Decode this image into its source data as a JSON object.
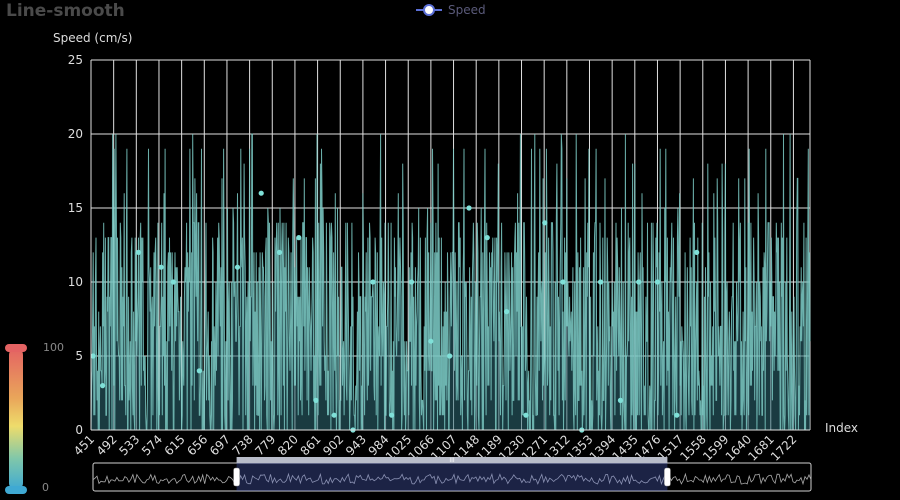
{
  "chart_data": {
    "type": "line",
    "title": "Line-smooth",
    "legend": {
      "entries": [
        "Speed"
      ],
      "placement": "top-center"
    },
    "xlabel": "Index",
    "ylabel": "Speed (cm/s)",
    "ylim": [
      0,
      25
    ],
    "yticks": [
      0,
      5,
      10,
      15,
      20,
      25
    ],
    "xticks": [
      451,
      492,
      533,
      574,
      615,
      656,
      697,
      738,
      779,
      820,
      861,
      902,
      943,
      984,
      1025,
      1066,
      1107,
      1148,
      1189,
      1230,
      1271,
      1312,
      1353,
      1394,
      1435,
      1476,
      1517,
      1558,
      1599,
      1640,
      1681,
      1722
    ],
    "xlim": [
      451,
      1752
    ],
    "grid": true,
    "smooth": true,
    "series": [
      {
        "name": "Speed",
        "color": "#7ccbc6",
        "markers": [
          {
            "x": 455,
            "y": 5
          },
          {
            "x": 472,
            "y": 3
          },
          {
            "x": 537,
            "y": 12
          },
          {
            "x": 578,
            "y": 11
          },
          {
            "x": 600,
            "y": 10
          },
          {
            "x": 647,
            "y": 4
          },
          {
            "x": 716,
            "y": 11
          },
          {
            "x": 759,
            "y": 16
          },
          {
            "x": 792,
            "y": 12
          },
          {
            "x": 827,
            "y": 13
          },
          {
            "x": 858,
            "y": 2
          },
          {
            "x": 891,
            "y": 1
          },
          {
            "x": 925,
            "y": 0
          },
          {
            "x": 961,
            "y": 10
          },
          {
            "x": 995,
            "y": 1
          },
          {
            "x": 1031,
            "y": 10
          },
          {
            "x": 1066,
            "y": 6
          },
          {
            "x": 1100,
            "y": 5
          },
          {
            "x": 1135,
            "y": 15
          },
          {
            "x": 1168,
            "y": 13
          },
          {
            "x": 1203,
            "y": 8
          },
          {
            "x": 1238,
            "y": 1
          },
          {
            "x": 1272,
            "y": 14
          },
          {
            "x": 1305,
            "y": 10
          },
          {
            "x": 1339,
            "y": 0
          },
          {
            "x": 1373,
            "y": 10
          },
          {
            "x": 1409,
            "y": 2
          },
          {
            "x": 1442,
            "y": 10
          },
          {
            "x": 1476,
            "y": 10
          },
          {
            "x": 1511,
            "y": 1
          },
          {
            "x": 1547,
            "y": 12
          }
        ]
      }
    ],
    "visual_map": {
      "max": 100,
      "min": 0,
      "colors": [
        "#e46363",
        "#e9a55a",
        "#eedc6b",
        "#7fc7aa",
        "#3fa9d3"
      ]
    },
    "data_zoom": {
      "start_percent": 20,
      "end_percent": 80,
      "handle_label": "III"
    }
  }
}
